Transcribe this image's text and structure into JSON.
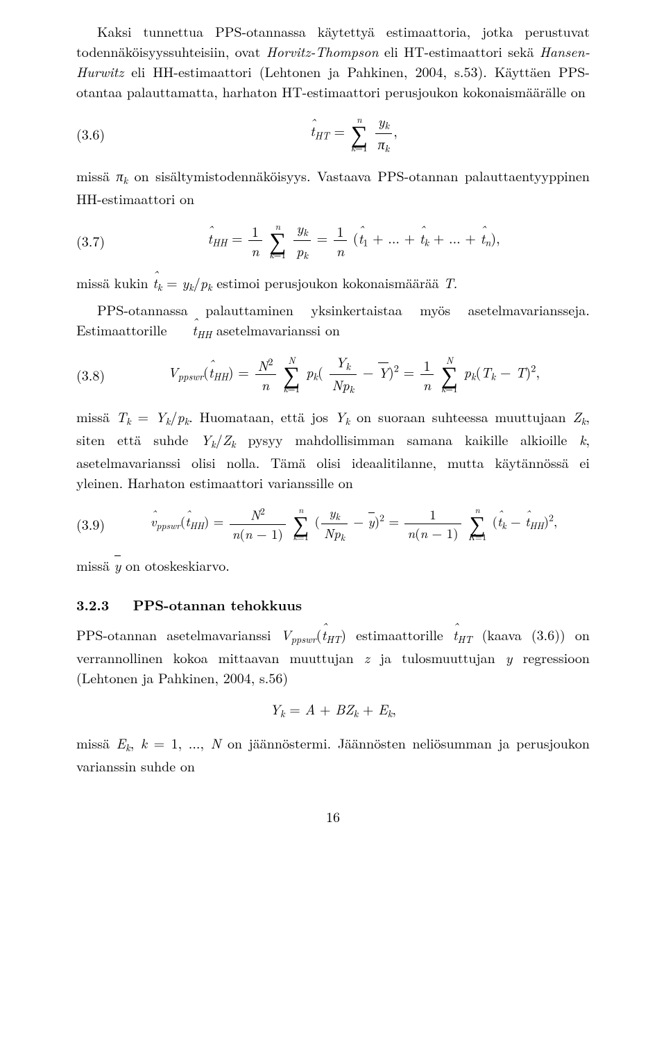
{
  "para1_a": "Kaksi tunnettua PPS-otannassa käytettyä estimaattoria, jotka perustuvat todennäköisyyssuhteisiin, ovat ",
  "para1_it1": "Horvitz-Thompson",
  "para1_b": " eli HT-estimaattori sekä ",
  "para1_it2": "Hansen-Hurwitz",
  "para1_c": " eli HH-estimaattori (Lehtonen ja Pahkinen, 2004, s.53). Käyttäen PPS-otantaa palauttamatta, harhaton HT-estimaattori perusjoukon kokonaismäärälle on",
  "eq36_num": "(3.6)",
  "para2_a": "missä ",
  "para2_b": " on sisältymistodennäköisyys. Vastaava PPS-otannan palauttaentyyppinen HH-estimaattori on",
  "eq37_num": "(3.7)",
  "para3_a": "missä kukin ",
  "para3_b": " estimoi perusjoukon kokonaismäärää ",
  "para3_c": ".",
  "para4": "PPS-otannassa palauttaminen yksinkertaistaa myös asetelmavariansseja. Estimaattorille ",
  "para4b": " asetelmavarianssi on",
  "eq38_num": "(3.8)",
  "para5_a": "missä ",
  "para5_b": ". Huomataan, että jos ",
  "para5_c": " on suoraan suhteessa muuttujaan ",
  "para5_d": ", siten että suhde ",
  "para5_e": " pysyy mahdollisimman samana kaikille alkioille ",
  "para5_f": ", asetelmavarianssi olisi nolla. Tämä olisi ideaalitilanne, mutta käytännössä ei yleinen. Harhaton estimaattori varianssille on",
  "eq39_num": "(3.9)",
  "para6_a": "missä ",
  "para6_b": " on otoskeskiarvo.",
  "sec_num": "3.2.3",
  "sec_title": "PPS-otannan tehokkuus",
  "para7_a": "PPS-otannan asetelmavarianssi ",
  "para7_b": " estimaattorille ",
  "para7_c": " (kaava (3.6)) on verrannollinen kokoa mittaavan muuttujan ",
  "para7_d": " ja tulosmuuttujan ",
  "para7_e": " regressioon (Lehtonen ja Pahkinen, 2004, s.56)",
  "para8_a": "missä ",
  "para8_b": " on jäännöstermi. Jäännösten neliösumman ja perusjoukon varianssin suhde on",
  "pagenum": "16"
}
